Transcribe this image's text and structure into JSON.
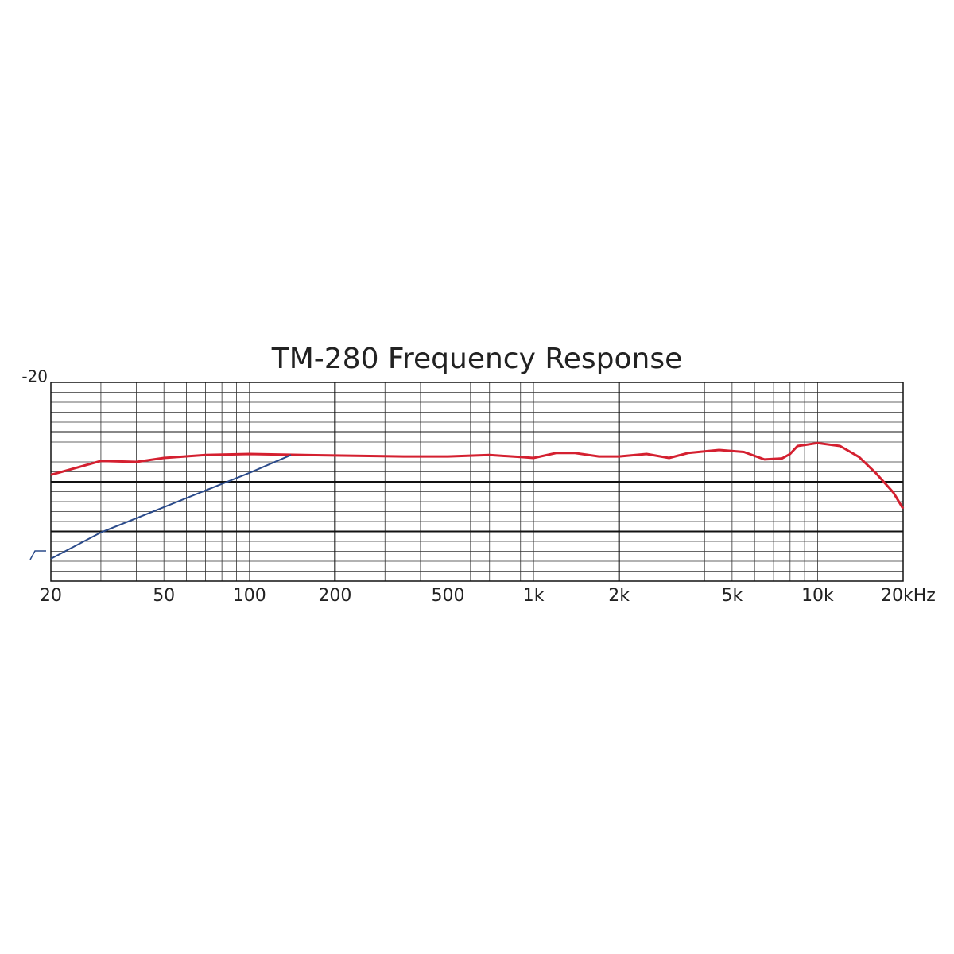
{
  "chart_data": {
    "type": "line",
    "title": "TM-280 Frequency Response",
    "xscale": "log",
    "xlim": [
      20,
      20000
    ],
    "ylim": [
      -60,
      -20
    ],
    "xticks": [
      20,
      50,
      100,
      200,
      500,
      {
        "value": 1000,
        "label": "1k"
      },
      {
        "value": 2000,
        "label": "2k"
      },
      {
        "value": 5000,
        "label": "5k"
      },
      {
        "value": 10000,
        "label": "10k"
      },
      {
        "value": 20000,
        "label": "20kHz"
      }
    ],
    "yticks": [
      -20
    ],
    "xgrid": [
      30,
      40,
      50,
      60,
      70,
      80,
      90,
      100,
      200,
      300,
      400,
      500,
      600,
      700,
      800,
      900,
      1000,
      2000,
      3000,
      4000,
      5000,
      6000,
      7000,
      8000,
      9000,
      10000
    ],
    "xgrid_major": [
      200,
      2000
    ],
    "ygrid": [
      -22,
      -24,
      -26,
      -28,
      -30,
      -32,
      -34,
      -36,
      -38,
      -40,
      -42,
      -44,
      -46,
      -48,
      -50,
      -52,
      -54,
      -56,
      -58
    ],
    "ygrid_major": [
      -30,
      -40,
      -50
    ],
    "series": [
      {
        "color": "#d42030",
        "x": [
          20,
          30,
          40,
          50,
          70,
          100,
          200,
          350,
          500,
          700,
          900,
          1000,
          1200,
          1400,
          1700,
          2000,
          2500,
          3000,
          3500,
          4500,
          5500,
          6500,
          7500,
          8000,
          8500,
          10000,
          12000,
          14000,
          16000,
          18500,
          20000
        ],
        "values": [
          -38.6,
          -35.8,
          -36,
          -35.2,
          -34.6,
          -34.4,
          -34.7,
          -34.9,
          -34.9,
          -34.6,
          -35,
          -35.2,
          -34.2,
          -34.2,
          -34.9,
          -34.9,
          -34.4,
          -35.2,
          -34.2,
          -33.6,
          -34,
          -35.5,
          -35.3,
          -34.4,
          -32.8,
          -32.2,
          -32.8,
          -35,
          -38.2,
          -42.2,
          -45.4
        ]
      },
      {
        "color": "#2a4a8a",
        "x": [
          20,
          30,
          50,
          100,
          140
        ],
        "values": [
          -55.5,
          -50.2,
          -45.1,
          -38.2,
          -34.6
        ]
      }
    ]
  }
}
